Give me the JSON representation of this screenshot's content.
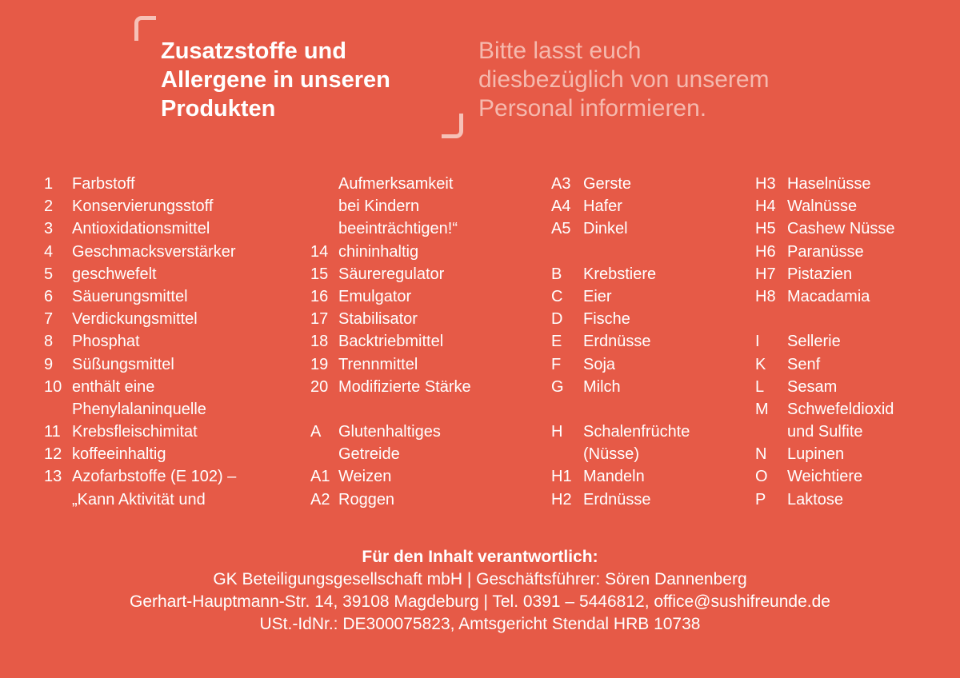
{
  "header": {
    "title_lines": [
      "Zusatzstoffe und",
      "Allergene in unseren",
      "Produkten"
    ],
    "subtitle_lines": [
      "Bitte lasst euch",
      "diesbezüglich von unserem",
      "Personal informieren."
    ]
  },
  "columns": {
    "col1": [
      {
        "code": "1",
        "label": "Farbstoff"
      },
      {
        "code": "2",
        "label": "Konservierungsstoff"
      },
      {
        "code": "3",
        "label": "Antioxidationsmittel"
      },
      {
        "code": "4",
        "label": "Geschmacksverstärker"
      },
      {
        "code": "5",
        "label": "geschwefelt"
      },
      {
        "code": "6",
        "label": "Säuerungsmittel"
      },
      {
        "code": "7",
        "label": "Verdickungsmittel"
      },
      {
        "code": "8",
        "label": "Phosphat"
      },
      {
        "code": "9",
        "label": "Süßungsmittel"
      },
      {
        "code": "10",
        "label": "enthält eine"
      },
      {
        "code": "",
        "label": "Phenylalaninquelle"
      },
      {
        "code": "11",
        "label": "Krebsfleischimitat"
      },
      {
        "code": "12",
        "label": "koffeeinhaltig"
      },
      {
        "code": "13",
        "label": "Azofarbstoffe (E 102) –"
      },
      {
        "code": "",
        "label": "„Kann Aktivität und"
      }
    ],
    "col2": [
      {
        "code": "",
        "label": "Aufmerksamkeit"
      },
      {
        "code": "",
        "label": "bei Kindern"
      },
      {
        "code": "",
        "label": "beeinträchtigen!“"
      },
      {
        "code": "14",
        "label": "chininhaltig"
      },
      {
        "code": "15",
        "label": "Säureregulator"
      },
      {
        "code": "16",
        "label": "Emulgator"
      },
      {
        "code": "17",
        "label": "Stabilisator"
      },
      {
        "code": "18",
        "label": "Backtriebmittel"
      },
      {
        "code": "19",
        "label": "Trennmittel"
      },
      {
        "code": "20",
        "label": "Modifizierte Stärke"
      },
      {
        "code": "",
        "label": ""
      },
      {
        "code": "A",
        "label": "Glutenhaltiges"
      },
      {
        "code": "",
        "label": "Getreide"
      },
      {
        "code": "A1",
        "label": "Weizen"
      },
      {
        "code": "A2",
        "label": "Roggen"
      }
    ],
    "col3": [
      {
        "code": "A3",
        "label": "Gerste"
      },
      {
        "code": "A4",
        "label": "Hafer"
      },
      {
        "code": "A5",
        "label": "Dinkel"
      },
      {
        "code": "",
        "label": ""
      },
      {
        "code": "B",
        "label": "Krebstiere"
      },
      {
        "code": "C",
        "label": "Eier"
      },
      {
        "code": "D",
        "label": "Fische"
      },
      {
        "code": "E",
        "label": "Erdnüsse"
      },
      {
        "code": "F",
        "label": "Soja"
      },
      {
        "code": "G",
        "label": "Milch"
      },
      {
        "code": "",
        "label": ""
      },
      {
        "code": "H",
        "label": "Schalenfrüchte"
      },
      {
        "code": "",
        "label": "(Nüsse)"
      },
      {
        "code": "H1",
        "label": "Mandeln"
      },
      {
        "code": "H2",
        "label": "Erdnüsse"
      }
    ],
    "col4": [
      {
        "code": "H3",
        "label": "Haselnüsse"
      },
      {
        "code": "H4",
        "label": "Walnüsse"
      },
      {
        "code": "H5",
        "label": "Cashew Nüsse"
      },
      {
        "code": "H6",
        "label": "Paranüsse"
      },
      {
        "code": "H7",
        "label": "Pistazien"
      },
      {
        "code": "H8",
        "label": "Macadamia"
      },
      {
        "code": "",
        "label": ""
      },
      {
        "code": "I",
        "label": "Sellerie"
      },
      {
        "code": "K",
        "label": "Senf"
      },
      {
        "code": "L",
        "label": "Sesam"
      },
      {
        "code": "M",
        "label": "Schwefeldioxid"
      },
      {
        "code": "",
        "label": "und Sulfite"
      },
      {
        "code": "N",
        "label": "Lupinen"
      },
      {
        "code": "O",
        "label": "Weichtiere"
      },
      {
        "code": "P",
        "label": "Laktose"
      }
    ]
  },
  "footer": {
    "heading": "Für den Inhalt verantwortlich:",
    "line1": "GK Beteiligungsgesellschaft mbH | Geschäftsführer: Sören Dannenberg",
    "line2": "Gerhart-Hauptmann-Str. 14, 39108 Magdeburg | Tel. 0391 – 5446812, office@sushifreunde.de",
    "line3": "USt.-IdNr.: DE300075823, Amtsgericht Stendal HRB 10738"
  }
}
